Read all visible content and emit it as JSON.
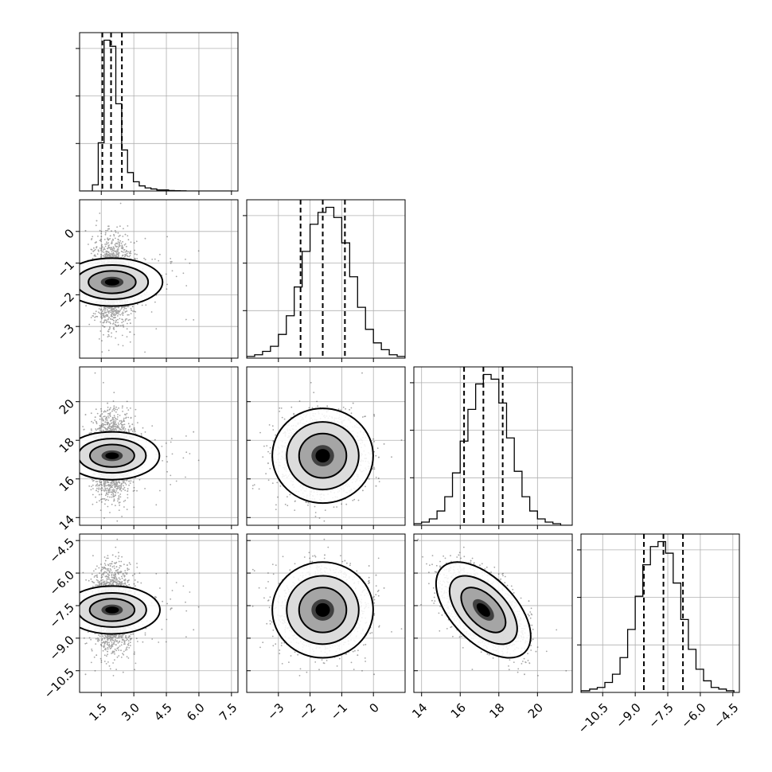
{
  "chart_data": {
    "type": "corner",
    "parameters": [
      {
        "index": 0,
        "range": [
          0.5,
          7.8
        ],
        "ticks": [
          1.5,
          3.0,
          4.5,
          6.0,
          7.5
        ],
        "tick_labels": [
          "1.5",
          "3.0",
          "4.5",
          "6.0",
          "7.5"
        ],
        "mean": 2.0,
        "std": 0.45,
        "skew": "right",
        "quantiles": {
          "q16": 1.55,
          "q50": 1.95,
          "q84": 2.45
        },
        "hist_bins": [
          0.55,
          0.82,
          1.09,
          1.36,
          1.63,
          1.9,
          2.17,
          2.44,
          2.71,
          2.98,
          3.25,
          3.52,
          3.79,
          4.06,
          4.33,
          4.6,
          4.87,
          5.14,
          5.41,
          7.57
        ],
        "hist_counts": [
          0,
          0,
          6,
          47,
          147,
          141,
          85,
          40,
          18,
          9,
          5,
          3,
          2,
          1,
          1,
          0.5,
          0.3,
          0.2,
          0
        ]
      },
      {
        "index": 1,
        "range": [
          -4.0,
          1.0
        ],
        "ticks": [
          -3,
          -2,
          -1,
          0
        ],
        "tick_labels": [
          "−3",
          "−2",
          "−1",
          "0"
        ],
        "mean": -1.6,
        "std": 0.65,
        "quantiles": {
          "q16": -2.3,
          "q50": -1.6,
          "q84": -0.9
        },
        "hist_bins": [
          -4.0,
          -3.75,
          -3.5,
          -3.25,
          -3.0,
          -2.75,
          -2.5,
          -2.25,
          -2.0,
          -1.75,
          -1.5,
          -1.25,
          -1.0,
          -0.75,
          -0.5,
          -0.25,
          0.0,
          0.25,
          0.5,
          0.75,
          1.0
        ],
        "hist_counts": [
          1,
          2,
          4,
          7,
          14,
          25,
          42,
          63,
          79,
          86,
          89,
          83,
          68,
          48,
          30,
          17,
          9,
          5,
          2,
          1
        ]
      },
      {
        "index": 2,
        "range": [
          13.6,
          21.8
        ],
        "ticks": [
          14,
          16,
          18,
          20
        ],
        "tick_labels": [
          "14",
          "16",
          "18",
          "20"
        ],
        "mean": 17.2,
        "std": 1.0,
        "quantiles": {
          "q16": 16.2,
          "q50": 17.2,
          "q84": 18.2
        },
        "hist_bins": [
          13.6,
          14.0,
          14.4,
          14.8,
          15.2,
          15.6,
          16.0,
          16.4,
          16.8,
          17.2,
          17.6,
          18.0,
          18.4,
          18.8,
          19.2,
          19.6,
          20.0,
          20.4,
          20.8,
          21.2,
          21.8
        ],
        "hist_counts": [
          1,
          2,
          4,
          9,
          18,
          33,
          53,
          73,
          89,
          95,
          92,
          77,
          55,
          34,
          18,
          9,
          4,
          2,
          1,
          0
        ]
      },
      {
        "index": 3,
        "range": [
          -11.5,
          -4.2
        ],
        "ticks": [
          -10.5,
          -9.0,
          -7.5,
          -6.0,
          -4.5
        ],
        "tick_labels": [
          "−10.5",
          "−9.0",
          "−7.5",
          "−6.0",
          "−4.5"
        ],
        "mean": -7.7,
        "std": 0.9,
        "quantiles": {
          "q16": -8.6,
          "q50": -7.7,
          "q84": -6.8
        },
        "hist_bins": [
          -11.5,
          -11.1,
          -10.75,
          -10.4,
          -10.05,
          -9.7,
          -9.35,
          -9.0,
          -8.65,
          -8.3,
          -7.95,
          -7.6,
          -7.25,
          -6.9,
          -6.55,
          -6.2,
          -5.85,
          -5.5,
          -5.15,
          -4.8,
          -4.45
        ],
        "hist_counts": [
          1,
          2,
          3,
          6,
          11,
          21,
          38,
          58,
          77,
          88,
          91,
          84,
          66,
          44,
          26,
          14,
          7,
          3,
          2,
          1
        ]
      }
    ],
    "correlations": {
      "2-3": -0.55
    },
    "quantile_line_style": "dashed",
    "contours": "filled 2D density with contour levels",
    "scatter_points": "grey",
    "grid": true,
    "title": "",
    "xlabel": "",
    "ylabel": ""
  }
}
